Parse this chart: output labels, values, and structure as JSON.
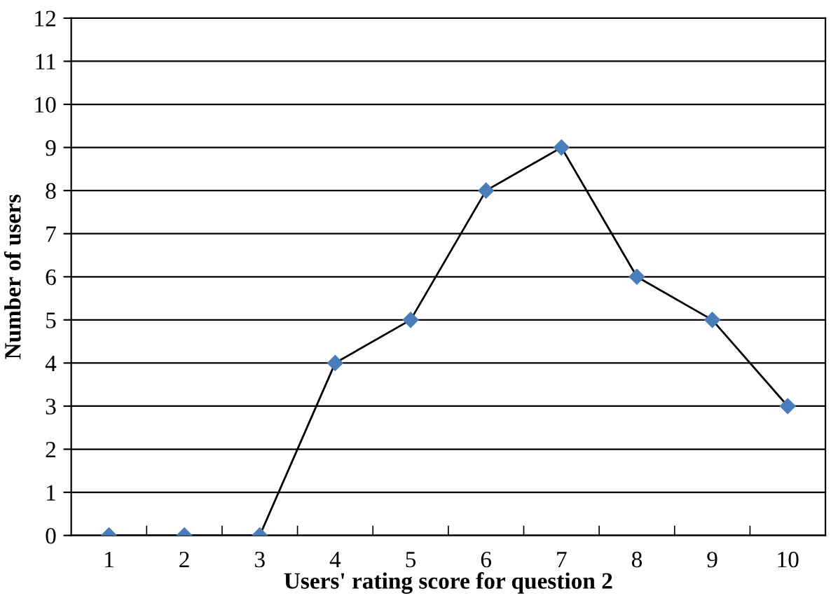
{
  "chart_data": {
    "type": "line",
    "xlabel": "Users' rating score for question 2",
    "ylabel": "Number of users",
    "categories": [
      "1",
      "2",
      "3",
      "4",
      "5",
      "6",
      "7",
      "8",
      "9",
      "10"
    ],
    "series": [
      {
        "color": "#4a7ebb",
        "values": [
          0,
          0,
          0,
          4,
          5,
          8,
          9,
          6,
          5,
          3
        ]
      }
    ],
    "ylim": [
      0,
      12
    ],
    "yticks": [
      0,
      1,
      2,
      3,
      4,
      5,
      6,
      7,
      8,
      9,
      10,
      11,
      12
    ],
    "grid": "y",
    "marker": "diamond",
    "line_style": "solid"
  }
}
